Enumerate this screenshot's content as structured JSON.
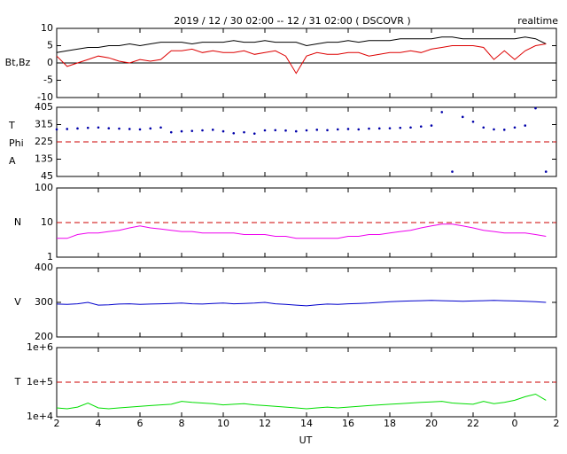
{
  "title": "2019 / 12 / 30   02:00 -- 12 / 31   02:00 ( DSCOVR )",
  "status": "realtime",
  "x_label": "UT",
  "xlim": [
    2,
    26
  ],
  "xticks": [
    2,
    4,
    6,
    8,
    10,
    12,
    14,
    16,
    18,
    20,
    22,
    {
      "value": 24,
      "label": "0"
    },
    {
      "value": 26,
      "label": "2"
    }
  ],
  "x": [
    2,
    2.5,
    3,
    3.5,
    4,
    4.5,
    5,
    5.5,
    6,
    6.5,
    7,
    7.5,
    8,
    8.5,
    9,
    9.5,
    10,
    10.5,
    11,
    11.5,
    12,
    12.5,
    13,
    13.5,
    14,
    14.5,
    15,
    15.5,
    16,
    16.5,
    17,
    17.5,
    18,
    18.5,
    19,
    19.5,
    20,
    20.5,
    21,
    21.5,
    22,
    22.5,
    23,
    23.5,
    24,
    24.5,
    25,
    25.5
  ],
  "chart_data": [
    {
      "type": "line",
      "y_labels": [
        "Bt,Bz"
      ],
      "ylim": [
        -10,
        10
      ],
      "yticks": [
        -10,
        -5,
        0,
        5,
        10
      ],
      "log": false,
      "hline": {
        "value": 0,
        "color": "#000000",
        "dash": false
      },
      "series": [
        {
          "color": "#000000",
          "values": [
            3,
            3.5,
            4,
            4.5,
            4.5,
            5,
            5,
            5.5,
            5,
            5.5,
            6,
            6,
            6,
            5.5,
            6,
            6,
            6,
            6.5,
            6,
            6,
            6.5,
            6,
            6,
            6,
            5,
            5.5,
            6,
            6,
            6.5,
            6,
            6.5,
            6.5,
            6.5,
            7,
            7,
            7,
            7,
            7.5,
            7.5,
            7,
            7,
            7,
            7,
            7,
            7,
            7.5,
            7,
            5.5
          ]
        },
        {
          "color": "#dd0000",
          "values": [
            2,
            -1,
            0,
            1,
            2,
            1.5,
            0.5,
            0,
            1,
            0.5,
            1,
            3.5,
            3.5,
            4,
            3,
            3.5,
            3,
            3,
            3.5,
            2.5,
            3,
            3.5,
            2,
            -3,
            2,
            3,
            2.5,
            2.5,
            3,
            3,
            2,
            2.5,
            3,
            3,
            3.5,
            3,
            4,
            4.5,
            5,
            5,
            5,
            4.5,
            1,
            3.5,
            1,
            3.5,
            5,
            5.5
          ]
        }
      ]
    },
    {
      "type": "scatter",
      "y_labels": [
        "T",
        "Phi",
        "A"
      ],
      "ylim": [
        45,
        405
      ],
      "yticks": [
        45,
        135,
        225,
        315,
        405
      ],
      "log": false,
      "hline": {
        "value": 225,
        "color": "#cc0000",
        "dash": true
      },
      "series": [
        {
          "color": "#0000aa",
          "values": [
            290,
            292,
            295,
            298,
            300,
            296,
            294,
            292,
            290,
            295,
            300,
            275,
            280,
            282,
            285,
            288,
            280,
            270,
            275,
            268,
            285,
            286,
            284,
            280,
            285,
            288,
            286,
            290,
            292,
            290,
            294,
            295,
            296,
            298,
            300,
            305,
            310,
            380,
            70,
            355,
            330,
            300,
            290,
            288,
            300,
            310,
            400,
            70
          ]
        }
      ]
    },
    {
      "type": "line",
      "y_labels": [
        "N"
      ],
      "ylim": [
        1,
        100
      ],
      "yticks": [
        1,
        10,
        100
      ],
      "log": true,
      "hline": {
        "value": 10,
        "color": "#cc0000",
        "dash": true
      },
      "series": [
        {
          "color": "#ee00ee",
          "values": [
            3.5,
            3.5,
            4.5,
            5,
            5,
            5.5,
            6,
            7,
            8,
            7,
            6.5,
            6,
            5.5,
            5.5,
            5,
            5,
            5,
            5,
            4.5,
            4.5,
            4.5,
            4,
            4,
            3.5,
            3.5,
            3.5,
            3.5,
            3.5,
            4,
            4,
            4.5,
            4.5,
            5,
            5.5,
            6,
            7,
            8,
            9,
            9,
            8,
            7,
            6,
            5.5,
            5,
            5,
            5,
            4.5,
            4
          ]
        }
      ]
    },
    {
      "type": "line",
      "y_labels": [
        "V"
      ],
      "ylim": [
        200,
        400
      ],
      "yticks": [
        200,
        300,
        400
      ],
      "log": false,
      "series": [
        {
          "color": "#0000cc",
          "values": [
            295,
            294,
            296,
            300,
            292,
            293,
            295,
            296,
            294,
            295,
            296,
            297,
            298,
            296,
            295,
            297,
            298,
            296,
            297,
            298,
            300,
            296,
            294,
            292,
            290,
            293,
            295,
            294,
            296,
            297,
            298,
            300,
            302,
            303,
            304,
            305,
            306,
            305,
            304,
            303,
            304,
            305,
            306,
            305,
            304,
            303,
            302,
            300
          ]
        }
      ]
    },
    {
      "type": "line",
      "y_labels": [
        "T"
      ],
      "ylim": [
        10000,
        1000000
      ],
      "yticks": [
        {
          "value": 10000,
          "label": "1e+4"
        },
        {
          "value": 100000,
          "label": "1e+5"
        },
        {
          "value": 1000000,
          "label": "1e+6"
        }
      ],
      "log": true,
      "hline": {
        "value": 100000,
        "color": "#cc0000",
        "dash": true
      },
      "series": [
        {
          "color": "#00dd00",
          "values": [
            18000,
            17000,
            19000,
            25000,
            18000,
            17000,
            18000,
            19000,
            20000,
            21000,
            22000,
            23000,
            28000,
            26000,
            25000,
            24000,
            22000,
            23000,
            24000,
            22000,
            21000,
            20000,
            19000,
            18000,
            17000,
            18000,
            19000,
            18000,
            19000,
            20000,
            21000,
            22000,
            23000,
            24000,
            25000,
            26000,
            27000,
            28000,
            25000,
            24000,
            23000,
            28000,
            24000,
            26000,
            30000,
            38000,
            45000,
            30000
          ]
        }
      ]
    }
  ]
}
